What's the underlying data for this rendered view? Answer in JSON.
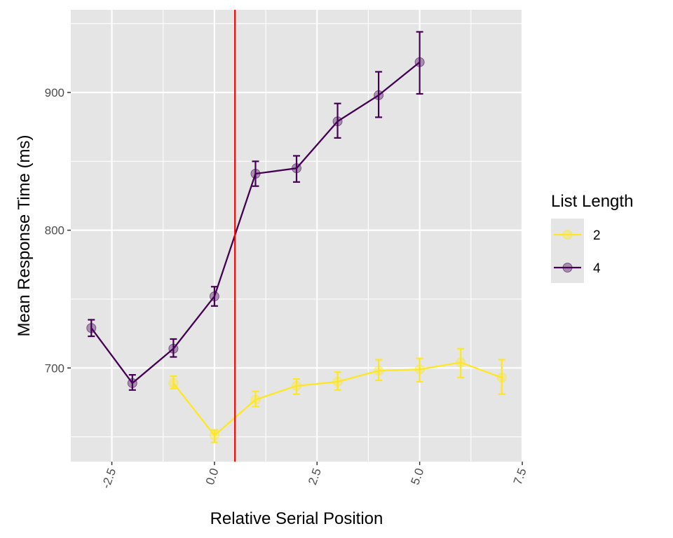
{
  "chart_data": {
    "type": "line",
    "xlabel": "Relative Serial Position",
    "ylabel": "Mean Response Time (ms)",
    "xlim": [
      -3.5,
      7.5
    ],
    "ylim": [
      632,
      960
    ],
    "x_ticks": [
      -2.5,
      0.0,
      2.5,
      5.0,
      7.5
    ],
    "x_tick_labels": [
      "-2.5",
      "0.0",
      "2.5",
      "5.0",
      "7.5"
    ],
    "y_ticks": [
      700,
      800,
      900
    ],
    "y_tick_labels": [
      "700",
      "800",
      "900"
    ],
    "grid": true,
    "vline": {
      "x": 0.5,
      "color": "#ff0000"
    },
    "legend": {
      "title": "List Length",
      "position": "right"
    },
    "series": [
      {
        "name": "2",
        "color": "#fde725",
        "x": [
          -1,
          0,
          1,
          2,
          3,
          4,
          5,
          6,
          7
        ],
        "y": [
          689,
          651,
          677,
          687,
          690,
          698,
          699,
          704,
          693
        ],
        "error_low": [
          685,
          646,
          672,
          681,
          684,
          691,
          690,
          693,
          681
        ],
        "error_high": [
          694,
          655,
          683,
          692,
          697,
          706,
          707,
          714,
          706
        ]
      },
      {
        "name": "4",
        "color": "#440154",
        "x": [
          -3,
          -2,
          -1,
          0,
          1,
          2,
          3,
          4,
          5
        ],
        "y": [
          729,
          689,
          714,
          752,
          841,
          845,
          879,
          898,
          922
        ],
        "error_low": [
          723,
          684,
          708,
          745,
          832,
          835,
          867,
          882,
          899
        ],
        "error_high": [
          735,
          695,
          721,
          759,
          850,
          854,
          892,
          915,
          944
        ]
      }
    ]
  }
}
